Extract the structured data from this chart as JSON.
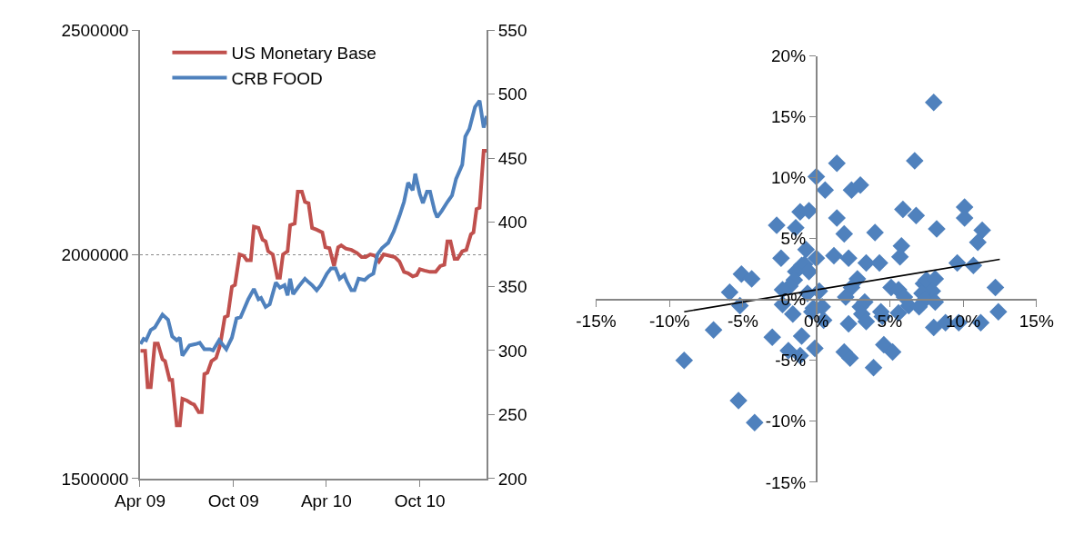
{
  "chart_data": [
    {
      "type": "line",
      "legend": "top left",
      "grid": "y",
      "line_style": "solid",
      "xlim": [
        "2009-04-01",
        "2011-02-09"
      ],
      "xticks": [
        {
          "value": "2009-04-01",
          "label": "Apr 09"
        },
        {
          "value": "2009-10-01",
          "label": "Oct 09"
        },
        {
          "value": "2010-04-01",
          "label": "Apr 10"
        },
        {
          "value": "2010-10-01",
          "label": "Oct 10"
        }
      ],
      "ylim": [
        1500000,
        2500000
      ],
      "yticks": [
        1500000,
        2000000,
        2500000
      ],
      "y2lim": [
        200,
        550
      ],
      "y2ticks": [
        200,
        250,
        300,
        350,
        400,
        450,
        500,
        550
      ],
      "series": [
        {
          "name": "US Monetary Base",
          "color": "#c0504d",
          "x": [
            "2009-04-02",
            "2009-04-11",
            "2009-04-16",
            "2009-04-22",
            "2009-04-30",
            "2009-05-06",
            "2009-05-15",
            "2009-05-20",
            "2009-05-29",
            "2009-06-03",
            "2009-06-12",
            "2009-06-18",
            "2009-06-23",
            "2009-07-02",
            "2009-07-10",
            "2009-07-16",
            "2009-07-25",
            "2009-07-31",
            "2009-08-05",
            "2009-08-11",
            "2009-08-19",
            "2009-08-28",
            "2009-09-05",
            "2009-09-14",
            "2009-09-20",
            "2009-09-28",
            "2009-10-04",
            "2009-10-13",
            "2009-10-21",
            "2009-10-27",
            "2009-11-04",
            "2009-11-10",
            "2009-11-19",
            "2009-11-27",
            "2009-12-03",
            "2009-12-08",
            "2009-12-17",
            "2009-12-26",
            "2009-12-31",
            "2010-01-06",
            "2010-01-15",
            "2010-01-20",
            "2010-01-29",
            "2010-02-04",
            "2010-02-12",
            "2010-02-18",
            "2010-02-25",
            "2010-03-04",
            "2010-03-13",
            "2010-03-24",
            "2010-03-30",
            "2010-04-07",
            "2010-04-16",
            "2010-04-24",
            "2010-04-30",
            "2010-05-09",
            "2010-05-20",
            "2010-05-31",
            "2010-06-09",
            "2010-06-17",
            "2010-06-26",
            "2010-07-05",
            "2010-07-13",
            "2010-07-22",
            "2010-08-02",
            "2010-08-13",
            "2010-08-22",
            "2010-08-31",
            "2010-09-08",
            "2010-09-17",
            "2010-09-25",
            "2010-10-01",
            "2010-10-10",
            "2010-10-21",
            "2010-11-01",
            "2010-11-10",
            "2010-11-18",
            "2010-11-24",
            "2010-11-30",
            "2010-12-08",
            "2010-12-14",
            "2010-12-23",
            "2010-12-31",
            "2011-01-09",
            "2011-01-14",
            "2011-01-20",
            "2011-01-26",
            "2011-02-03",
            "2011-02-09"
          ],
          "values": [
            1785000,
            1785000,
            1704000,
            1704000,
            1801000,
            1801000,
            1766000,
            1762000,
            1720000,
            1720000,
            1619000,
            1619000,
            1678000,
            1674000,
            1668000,
            1665000,
            1648000,
            1648000,
            1733000,
            1736000,
            1762000,
            1769000,
            1798000,
            1860000,
            1863000,
            1928000,
            1932000,
            2000000,
            1997000,
            1987000,
            1987000,
            2062000,
            2059000,
            2033000,
            2029000,
            2007000,
            2000000,
            1948000,
            1948000,
            2000000,
            2007000,
            2065000,
            2069000,
            2140000,
            2140000,
            2117000,
            2114000,
            2059000,
            2055000,
            2049000,
            2016000,
            2014000,
            1974000,
            2016000,
            2020000,
            2013000,
            2010000,
            2003000,
            1994000,
            1994000,
            2000000,
            1997000,
            1984000,
            2000000,
            1997000,
            1994000,
            1984000,
            1961000,
            1958000,
            1951000,
            1954000,
            1967000,
            1964000,
            1961000,
            1961000,
            1974000,
            1977000,
            2029000,
            2029000,
            1990000,
            1990000,
            2007000,
            2010000,
            2045000,
            2049000,
            2101000,
            2104000,
            2231000,
            2231000
          ]
        },
        {
          "name": "CRB FOOD",
          "color": "#4f81bd",
          "axis": "y2",
          "x": [
            "2009-04-02",
            "2009-04-08",
            "2009-04-13",
            "2009-04-22",
            "2009-04-30",
            "2009-05-15",
            "2009-05-26",
            "2009-06-03",
            "2009-06-12",
            "2009-06-18",
            "2009-06-23",
            "2009-07-07",
            "2009-07-19",
            "2009-07-27",
            "2009-08-05",
            "2009-08-16",
            "2009-08-22",
            "2009-09-03",
            "2009-09-11",
            "2009-09-17",
            "2009-09-28",
            "2009-10-07",
            "2009-10-15",
            "2009-10-30",
            "2009-11-10",
            "2009-11-19",
            "2009-11-24",
            "2009-12-03",
            "2009-12-11",
            "2009-12-23",
            "2009-12-31",
            "2010-01-09",
            "2010-01-15",
            "2010-01-20",
            "2010-01-26",
            "2010-02-06",
            "2010-02-18",
            "2010-02-26",
            "2010-03-04",
            "2010-03-13",
            "2010-03-21",
            "2010-04-02",
            "2010-04-10",
            "2010-04-19",
            "2010-04-27",
            "2010-05-06",
            "2010-05-11",
            "2010-05-20",
            "2010-05-26",
            "2010-06-03",
            "2010-06-15",
            "2010-06-23",
            "2010-07-02",
            "2010-07-10",
            "2010-07-19",
            "2010-07-31",
            "2010-08-11",
            "2010-08-22",
            "2010-08-31",
            "2010-09-08",
            "2010-09-17",
            "2010-09-22",
            "2010-10-01",
            "2010-10-07",
            "2010-10-15",
            "2010-10-21",
            "2010-10-30",
            "2010-11-04",
            "2010-11-13",
            "2010-11-24",
            "2010-12-03",
            "2010-12-11",
            "2010-12-23",
            "2010-12-29",
            "2011-01-06",
            "2011-01-17",
            "2011-01-26",
            "2011-02-03",
            "2011-02-09"
          ],
          "values": [
            305,
            309,
            308,
            316,
            318,
            328,
            324,
            311,
            308,
            310,
            296,
            304,
            305,
            306,
            301,
            301,
            300,
            308,
            304,
            301,
            310,
            325,
            326,
            340,
            348,
            340,
            341,
            334,
            336,
            353,
            349,
            351,
            343,
            356,
            344,
            350,
            356,
            353,
            351,
            347,
            351,
            360,
            364,
            364,
            356,
            359,
            354,
            347,
            347,
            356,
            355,
            358,
            360,
            375,
            380,
            384,
            393,
            405,
            416,
            431,
            425,
            438,
            422,
            415,
            424,
            424,
            409,
            404,
            409,
            416,
            421,
            434,
            445,
            467,
            473,
            490,
            495,
            474,
            483
          ]
        }
      ]
    },
    {
      "type": "scatter",
      "xlim": [
        -15,
        15
      ],
      "xticks": [
        {
          "value": -15,
          "label": "-15%"
        },
        {
          "value": -10,
          "label": "-10%"
        },
        {
          "value": -5,
          "label": "-5%"
        },
        {
          "value": 0,
          "label": "0%"
        },
        {
          "value": 5,
          "label": "5%"
        },
        {
          "value": 10,
          "label": "10%"
        },
        {
          "value": 15,
          "label": "15%"
        }
      ],
      "ylim": [
        -15,
        20
      ],
      "yticks": [
        {
          "value": -15,
          "label": "-15%"
        },
        {
          "value": -10,
          "label": "-10%"
        },
        {
          "value": -5,
          "label": "-5%"
        },
        {
          "value": 0,
          "label": "0%"
        },
        {
          "value": 5,
          "label": "5%"
        },
        {
          "value": 10,
          "label": "10%"
        },
        {
          "value": 15,
          "label": "15%"
        },
        {
          "value": 20,
          "label": "20%"
        }
      ],
      "series": [
        {
          "color": "#4f81bd",
          "marker": "diamond",
          "x": [
            -9.0,
            -7.0,
            -5.9,
            -5.1,
            -4.4,
            -5.2,
            -3.0,
            -2.7,
            -2.4,
            -1.4,
            -1.1,
            -0.5,
            0.0,
            -0.7,
            -1.0,
            -0.8,
            -0.5,
            -1.4,
            -1.5,
            -1.8,
            -2.3,
            -2.3,
            -1.6,
            -0.6,
            -0.2,
            0.0,
            -1.0,
            -1.9,
            -1.1,
            -0.1,
            -5.3,
            -4.2,
            8.0,
            1.4,
            6.7,
            0.6,
            2.4,
            3.0,
            1.4,
            1.9,
            4.0,
            5.9,
            6.8,
            8.2,
            10.1,
            10.1,
            11.3,
            11.0,
            5.8,
            5.7,
            1.2,
            2.2,
            3.4,
            4.3,
            9.6,
            10.7,
            2.8,
            2.4,
            2.0,
            0.2,
            5.1,
            5.6,
            6.0,
            6.3,
            5.6,
            7.3,
            7.5,
            8.1,
            7.9,
            7.2,
            7.4,
            8.1,
            7.0,
            3.3,
            3.0,
            3.1,
            3.4,
            4.4,
            4.5,
            0.4,
            -0.3,
            0.5,
            2.2,
            8.0,
            8.8,
            9.7,
            11.2,
            12.2,
            12.4,
            1.9,
            2.3,
            3.9,
            4.6,
            5.2
          ],
          "values": [
            -5.0,
            -2.5,
            0.6,
            2.1,
            1.7,
            -0.5,
            -3.1,
            6.1,
            3.4,
            5.9,
            7.2,
            7.3,
            10.1,
            4.1,
            2.8,
            2.9,
            2.3,
            2.3,
            1.6,
            1.1,
            0.8,
            -0.4,
            -1.2,
            0.5,
            -0.7,
            3.4,
            -3.0,
            -4.2,
            -4.6,
            -4.0,
            -8.3,
            -10.1,
            16.2,
            11.2,
            11.4,
            9.0,
            9.0,
            9.4,
            6.7,
            5.4,
            5.5,
            7.4,
            6.9,
            5.8,
            7.6,
            6.7,
            5.7,
            4.7,
            4.4,
            3.5,
            3.6,
            3.4,
            3.0,
            3.0,
            3.0,
            2.8,
            1.7,
            1.0,
            0.2,
            0.7,
            1.0,
            0.8,
            0.2,
            -0.5,
            -1.1,
            1.3,
            1.6,
            1.7,
            0.7,
            0.5,
            0.0,
            -0.2,
            -0.6,
            -0.2,
            -0.6,
            -1.2,
            -1.8,
            -1.0,
            -1.4,
            -0.6,
            -1.0,
            -1.7,
            -2.0,
            -2.3,
            -1.9,
            -1.9,
            -1.9,
            1.0,
            -1.0,
            -4.3,
            -4.8,
            -5.6,
            -3.7,
            -4.3
          ]
        },
        {
          "type": "line",
          "color": "#000000",
          "x": [
            -9.0,
            12.5
          ],
          "values": [
            -1.0,
            3.3
          ]
        }
      ]
    }
  ]
}
